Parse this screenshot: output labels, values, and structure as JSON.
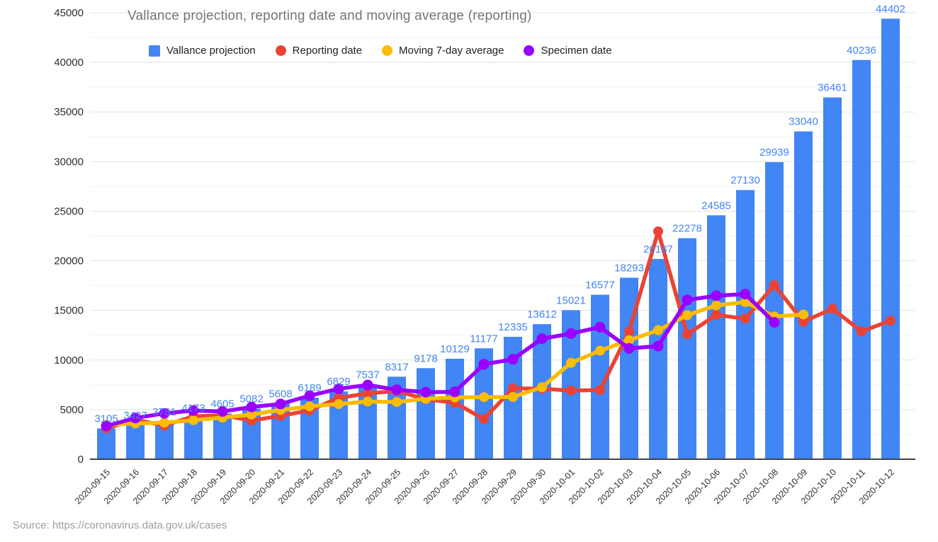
{
  "title": "Vallance projection, reporting date and moving average (reporting)",
  "source_note": "Source: https://coronavirus.data.gov.uk/cases",
  "colors": {
    "bar_blue": "#4285F4",
    "reporting_red": "#EA4335",
    "avg_yellow": "#FBBC04",
    "specimen_purple": "#9900FF",
    "title_gray": "#757575",
    "source_gray": "#9E9E9E",
    "axis_text": "#2E2E2E",
    "grid_major": "#E3E3E3",
    "grid_minor": "#F2F2F2",
    "axis_line": "#424242",
    "data_label_blue": "#4285F4"
  },
  "legend": {
    "position": "top",
    "items": [
      {
        "label": "Vallance projection",
        "color": "#4285F4",
        "shape": "square"
      },
      {
        "label": "Reporting date",
        "color": "#EA4335",
        "shape": "circle"
      },
      {
        "label": "Moving 7-day average",
        "color": "#FBBC04",
        "shape": "circle"
      },
      {
        "label": "Specimen date",
        "color": "#9900FF",
        "shape": "circle"
      }
    ]
  },
  "chart_data": {
    "type": "combo-bar-line",
    "title": "Vallance projection, reporting date and moving average (reporting)",
    "xlabel": "",
    "ylabel": "",
    "ylim": [
      0,
      45000
    ],
    "y_ticks": [
      0,
      5000,
      10000,
      15000,
      20000,
      25000,
      30000,
      35000,
      40000,
      45000
    ],
    "minor_grid_step": 2500,
    "grid": true,
    "legend_position": "top",
    "categories": [
      "2020-09-15",
      "2020-09-16",
      "2020-09-17",
      "2020-09-18",
      "2020-09-19",
      "2020-09-20",
      "2020-09-21",
      "2020-09-22",
      "2020-09-23",
      "2020-09-24",
      "2020-09-25",
      "2020-09-26",
      "2020-09-27",
      "2020-09-28",
      "2020-09-29",
      "2020-09-30",
      "2020-10-01",
      "2020-10-02",
      "2020-10-03",
      "2020-10-04",
      "2020-10-05",
      "2020-10-06",
      "2020-10-07",
      "2020-10-08",
      "2020-10-09",
      "2020-10-10",
      "2020-10-11",
      "2020-10-12"
    ],
    "series": [
      {
        "name": "Vallance projection",
        "type": "bar",
        "color": "#4285F4",
        "data_labels_shown": true,
        "values": [
          3105,
          3427,
          3781,
          4173,
          4605,
          5082,
          5608,
          6189,
          6829,
          7537,
          8317,
          9178,
          10129,
          11177,
          12335,
          13612,
          15021,
          16577,
          18293,
          20187,
          22278,
          24585,
          27130,
          29939,
          33040,
          36461,
          40236,
          44402
        ]
      },
      {
        "name": "Reporting date",
        "type": "line",
        "color": "#EA4335",
        "values": [
          3105,
          3991,
          3395,
          4322,
          4422,
          3899,
          4368,
          4926,
          6178,
          6634,
          6874,
          6042,
          5693,
          4044,
          7143,
          7108,
          6914,
          6968,
          12872,
          22961,
          12594,
          14542,
          14162,
          17540,
          13864,
          15166,
          12872,
          13972
        ]
      },
      {
        "name": "Moving 7-day average",
        "type": "line",
        "color": "#FBBC04",
        "values": [
          3466,
          3598,
          3679,
          3929,
          4189,
          4501,
          4964,
          5329,
          5560,
          5816,
          5770,
          6087,
          6220,
          6260,
          6273,
          7249,
          9716,
          10937,
          11994,
          13002,
          14520,
          15505,
          15833,
          14391,
          14588,
          null,
          null,
          null
        ]
      },
      {
        "name": "Specimen date",
        "type": "line",
        "color": "#9900FF",
        "values": [
          3350,
          4150,
          4620,
          4900,
          4810,
          5260,
          5570,
          6400,
          7100,
          7480,
          7000,
          6760,
          6790,
          9570,
          10070,
          12150,
          12660,
          13310,
          11170,
          11400,
          16050,
          16480,
          16640,
          13790,
          null,
          null,
          null,
          null
        ]
      }
    ]
  }
}
